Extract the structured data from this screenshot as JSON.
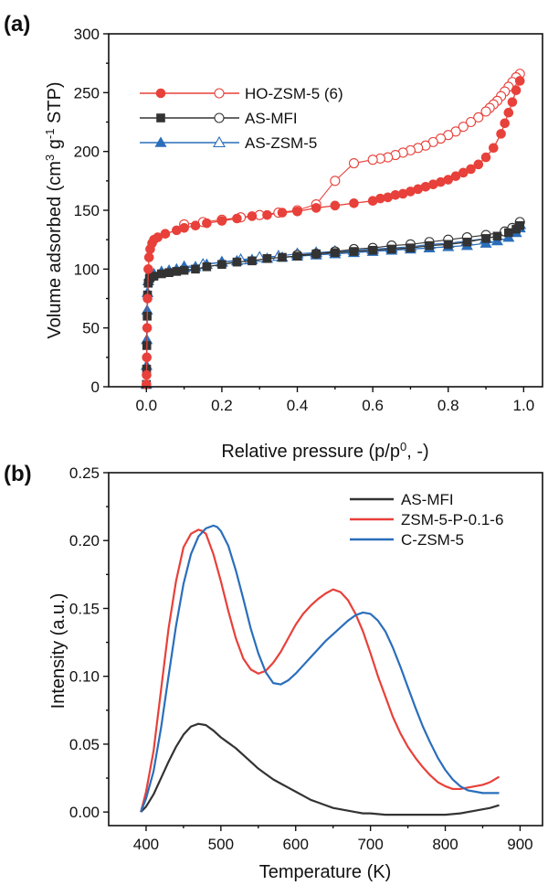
{
  "chart_data": [
    {
      "panel": "(a)",
      "type": "scatter",
      "xlabel": "Relative pressure (p/p⁰, -)",
      "ylabel": "Volume adsorbed (cm³ g⁻¹ STP)",
      "xlim": [
        -0.1,
        1.05
      ],
      "ylim": [
        0,
        300
      ],
      "xticks": [
        "0.0",
        "0.2",
        "0.4",
        "0.6",
        "0.8",
        "1.0"
      ],
      "xtick_values": [
        0,
        0.2,
        0.4,
        0.6,
        0.8,
        1.0
      ],
      "yticks": [
        "0",
        "50",
        "100",
        "150",
        "200",
        "250",
        "300"
      ],
      "ytick_values": [
        0,
        50,
        100,
        150,
        200,
        250,
        300
      ],
      "legend_position": "upper-left",
      "series": [
        {
          "name": "HO-ZSM-5 (6)",
          "color": "#e8403a",
          "adsorption": {
            "x": [
              0,
              0.0005,
              0.001,
              0.002,
              0.003,
              0.005,
              0.007,
              0.01,
              0.015,
              0.02,
              0.03,
              0.05,
              0.08,
              0.1,
              0.13,
              0.16,
              0.2,
              0.24,
              0.28,
              0.32,
              0.36,
              0.4,
              0.45,
              0.5,
              0.55,
              0.6,
              0.62,
              0.64,
              0.66,
              0.68,
              0.7,
              0.72,
              0.74,
              0.76,
              0.78,
              0.8,
              0.82,
              0.84,
              0.86,
              0.88,
              0.9,
              0.92,
              0.94,
              0.95,
              0.96,
              0.97,
              0.98,
              0.99
            ],
            "y": [
              2,
              10,
              25,
              50,
              75,
              100,
              110,
              117,
              122,
              125,
              127,
              130,
              133,
              135,
              137,
              139,
              141,
              143,
              145,
              146,
              148,
              149,
              152,
              154,
              156,
              158,
              160,
              161,
              163,
              164,
              166,
              168,
              170,
              172,
              174,
              176,
              179,
              182,
              185,
              189,
              195,
              203,
              215,
              224,
              233,
              242,
              252,
              260
            ]
          },
          "desorption": {
            "x": [
              0.99,
              0.98,
              0.97,
              0.96,
              0.95,
              0.94,
              0.93,
              0.92,
              0.91,
              0.9,
              0.88,
              0.86,
              0.84,
              0.82,
              0.8,
              0.78,
              0.76,
              0.74,
              0.72,
              0.7,
              0.68,
              0.66,
              0.64,
              0.62,
              0.6,
              0.55,
              0.5,
              0.45,
              0.4,
              0.35,
              0.3,
              0.25,
              0.2,
              0.15,
              0.1
            ],
            "y": [
              266,
              263,
              259,
              255,
              251,
              247,
              243,
              240,
              237,
              234,
              229,
              225,
              221,
              217,
              214,
              211,
              208,
              205,
              203,
              201,
              199,
              197,
              195,
              194,
              193,
              190,
              175,
              155,
              150,
              148,
              146,
              144,
              142,
              140,
              138
            ]
          }
        },
        {
          "name": "AS-MFI",
          "color": "#333333",
          "adsorption": {
            "x": [
              0,
              0.0005,
              0.001,
              0.002,
              0.003,
              0.005,
              0.008,
              0.01,
              0.02,
              0.04,
              0.06,
              0.08,
              0.1,
              0.13,
              0.16,
              0.2,
              0.24,
              0.28,
              0.32,
              0.36,
              0.4,
              0.45,
              0.5,
              0.55,
              0.6,
              0.65,
              0.7,
              0.75,
              0.8,
              0.85,
              0.9,
              0.93,
              0.96,
              0.98,
              0.99
            ],
            "y": [
              2,
              15,
              35,
              60,
              78,
              88,
              92,
              93,
              94,
              96,
              97,
              98,
              99,
              100,
              102,
              104,
              106,
              107,
              109,
              110,
              111,
              113,
              114,
              115,
              116,
              117,
              118,
              120,
              121,
              123,
              126,
              128,
              131,
              134,
              137
            ]
          },
          "desorption": {
            "x": [
              0.99,
              0.97,
              0.95,
              0.9,
              0.85,
              0.8,
              0.75,
              0.7,
              0.65,
              0.6,
              0.55,
              0.5,
              0.45,
              0.4
            ],
            "y": [
              140,
              135,
              132,
              129,
              127,
              125,
              123,
              121,
              120,
              118,
              117,
              115,
              113,
              112
            ]
          }
        },
        {
          "name": "AS-ZSM-5",
          "color": "#2a6ebb",
          "adsorption": {
            "x": [
              0,
              0.0005,
              0.001,
              0.002,
              0.003,
              0.005,
              0.008,
              0.01,
              0.02,
              0.04,
              0.06,
              0.08,
              0.1,
              0.13,
              0.16,
              0.2,
              0.24,
              0.28,
              0.32,
              0.36,
              0.4,
              0.45,
              0.5,
              0.55,
              0.6,
              0.65,
              0.7,
              0.75,
              0.8,
              0.85,
              0.9,
              0.93,
              0.96,
              0.98,
              0.99
            ],
            "y": [
              2,
              18,
              40,
              65,
              80,
              90,
              94,
              95,
              96,
              98,
              99,
              100,
              101,
              102,
              104,
              106,
              107,
              108,
              109,
              110,
              111,
              112,
              113,
              114,
              115,
              116,
              117,
              118,
              119,
              120,
              122,
              124,
              127,
              131,
              135
            ]
          },
          "desorption": {
            "x": [
              0.99,
              0.97,
              0.95,
              0.9,
              0.85,
              0.8,
              0.75,
              0.7,
              0.65,
              0.6,
              0.55,
              0.5,
              0.45,
              0.4,
              0.35,
              0.3,
              0.25,
              0.2,
              0.15,
              0.1
            ],
            "y": [
              138,
              132,
              129,
              126,
              124,
              122,
              121,
              119,
              118,
              117,
              116,
              115,
              114,
              113,
              111,
              110,
              108,
              106,
              104,
              102
            ]
          }
        }
      ]
    },
    {
      "panel": "(b)",
      "type": "line",
      "xlabel": "Temperature (K)",
      "ylabel": "Intensity (a.u.)",
      "xlim": [
        350,
        930
      ],
      "ylim": [
        -0.01,
        0.25
      ],
      "xticks": [
        "400",
        "500",
        "600",
        "700",
        "800",
        "900"
      ],
      "xtick_values": [
        400,
        500,
        600,
        700,
        800,
        900
      ],
      "yticks": [
        "0.00",
        "0.05",
        "0.10",
        "0.15",
        "0.20",
        "0.25"
      ],
      "ytick_values": [
        0,
        0.05,
        0.1,
        0.15,
        0.2,
        0.25
      ],
      "legend_position": "upper-right",
      "series": [
        {
          "name": "AS-MFI",
          "color": "#333333",
          "x": [
            393,
            400,
            410,
            420,
            430,
            440,
            450,
            460,
            470,
            480,
            490,
            500,
            510,
            520,
            530,
            540,
            550,
            560,
            570,
            580,
            590,
            600,
            610,
            620,
            630,
            640,
            650,
            660,
            670,
            680,
            690,
            700,
            720,
            740,
            760,
            780,
            800,
            820,
            840,
            860,
            872
          ],
          "y": [
            0.0,
            0.004,
            0.013,
            0.025,
            0.037,
            0.048,
            0.057,
            0.063,
            0.065,
            0.064,
            0.06,
            0.055,
            0.051,
            0.047,
            0.042,
            0.037,
            0.032,
            0.028,
            0.024,
            0.021,
            0.018,
            0.015,
            0.012,
            0.009,
            0.007,
            0.005,
            0.003,
            0.002,
            0.001,
            0.0,
            -0.001,
            -0.001,
            -0.002,
            -0.002,
            -0.002,
            -0.002,
            -0.002,
            -0.001,
            0.001,
            0.003,
            0.005
          ]
        },
        {
          "name": "ZSM-5-P-0.1-6",
          "color": "#e8403a",
          "x": [
            393,
            400,
            410,
            420,
            430,
            440,
            450,
            460,
            470,
            475,
            480,
            490,
            500,
            510,
            520,
            530,
            540,
            550,
            560,
            570,
            580,
            590,
            600,
            610,
            620,
            630,
            640,
            650,
            660,
            670,
            680,
            690,
            700,
            710,
            720,
            730,
            740,
            750,
            760,
            770,
            780,
            790,
            800,
            810,
            820,
            830,
            840,
            850,
            860,
            872
          ],
          "y": [
            0.0,
            0.015,
            0.045,
            0.09,
            0.135,
            0.17,
            0.195,
            0.205,
            0.208,
            0.207,
            0.205,
            0.19,
            0.17,
            0.148,
            0.128,
            0.113,
            0.105,
            0.102,
            0.104,
            0.11,
            0.118,
            0.128,
            0.138,
            0.146,
            0.152,
            0.157,
            0.161,
            0.164,
            0.162,
            0.156,
            0.146,
            0.133,
            0.117,
            0.1,
            0.085,
            0.07,
            0.058,
            0.048,
            0.04,
            0.033,
            0.027,
            0.022,
            0.019,
            0.017,
            0.017,
            0.018,
            0.019,
            0.02,
            0.022,
            0.026
          ]
        },
        {
          "name": "C-ZSM-5",
          "color": "#2a6ebb",
          "x": [
            393,
            400,
            410,
            420,
            430,
            440,
            450,
            460,
            470,
            480,
            490,
            495,
            500,
            510,
            520,
            530,
            540,
            550,
            560,
            570,
            580,
            590,
            600,
            610,
            620,
            630,
            640,
            650,
            660,
            670,
            680,
            690,
            700,
            710,
            720,
            730,
            740,
            750,
            760,
            770,
            780,
            790,
            800,
            810,
            820,
            830,
            840,
            850,
            860,
            872
          ],
          "y": [
            0.0,
            0.01,
            0.03,
            0.062,
            0.1,
            0.137,
            0.168,
            0.19,
            0.203,
            0.209,
            0.211,
            0.21,
            0.207,
            0.196,
            0.178,
            0.157,
            0.135,
            0.117,
            0.103,
            0.095,
            0.094,
            0.097,
            0.102,
            0.108,
            0.114,
            0.12,
            0.126,
            0.131,
            0.136,
            0.141,
            0.145,
            0.147,
            0.146,
            0.141,
            0.133,
            0.121,
            0.107,
            0.092,
            0.077,
            0.063,
            0.051,
            0.04,
            0.031,
            0.024,
            0.019,
            0.016,
            0.015,
            0.014,
            0.014,
            0.014
          ]
        }
      ]
    }
  ]
}
